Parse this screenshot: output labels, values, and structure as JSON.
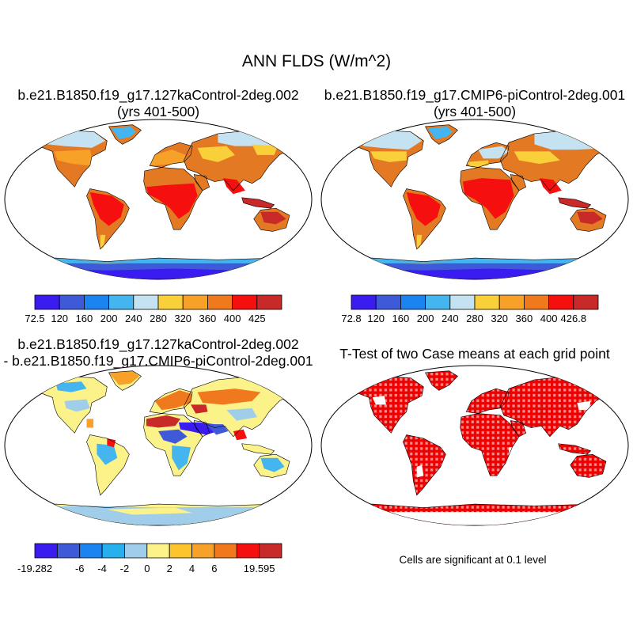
{
  "figure": {
    "title": "ANN FLDS (W/m^2)",
    "note": "Cells are significant at 0.1 level"
  },
  "panels": [
    {
      "id": "case1",
      "title_lines": [
        "b.e21.B1850.f19_g17.127kaControl-2deg.002",
        "(yrs 401-500)"
      ],
      "colorbar": {
        "labels": [
          "72.5",
          "120",
          "160",
          "200",
          "240",
          "280",
          "320",
          "360",
          "400",
          "425"
        ],
        "colors": [
          "#3a1cf0",
          "#3e5ad9",
          "#1c84f0",
          "#45b5ef",
          "#c4e2f1",
          "#fad03a",
          "#f8a128",
          "#f0791e",
          "#f50f0f",
          "#c82a2a"
        ]
      }
    },
    {
      "id": "case2",
      "title_lines": [
        "b.e21.B1850.f19_g17.CMIP6-piControl-2deg.001",
        "(yrs 401-500)"
      ],
      "colorbar": {
        "labels": [
          "72.8",
          "120",
          "160",
          "200",
          "240",
          "280",
          "320",
          "360",
          "400",
          "426.8"
        ],
        "colors": [
          "#3a1cf0",
          "#3e5ad9",
          "#1c84f0",
          "#45b5ef",
          "#c4e2f1",
          "#fad03a",
          "#f8a128",
          "#f0791e",
          "#f50f0f",
          "#c82a2a"
        ]
      }
    },
    {
      "id": "difference",
      "title_lines": [
        "b.e21.B1850.f19_g17.127kaControl-2deg.002",
        "- b.e21.B1850.f19_g17.CMIP6-piControl-2deg.001"
      ],
      "colorbar": {
        "labels": [
          "-19.282",
          "",
          "-6",
          "-4",
          "-2",
          "0",
          "2",
          "4",
          "6",
          "",
          "19.595"
        ],
        "colors": [
          "#3a1cf0",
          "#3e5ad9",
          "#1c84f0",
          "#26b0ee",
          "#9fcdea",
          "#fcf28a",
          "#fcc52e",
          "#f8a128",
          "#f0791e",
          "#f50f0f",
          "#c82a2a"
        ]
      }
    },
    {
      "id": "ttest",
      "title_lines": [
        "T-Test of two Case means at each grid point"
      ],
      "significance_color": "#ef0000"
    }
  ]
}
